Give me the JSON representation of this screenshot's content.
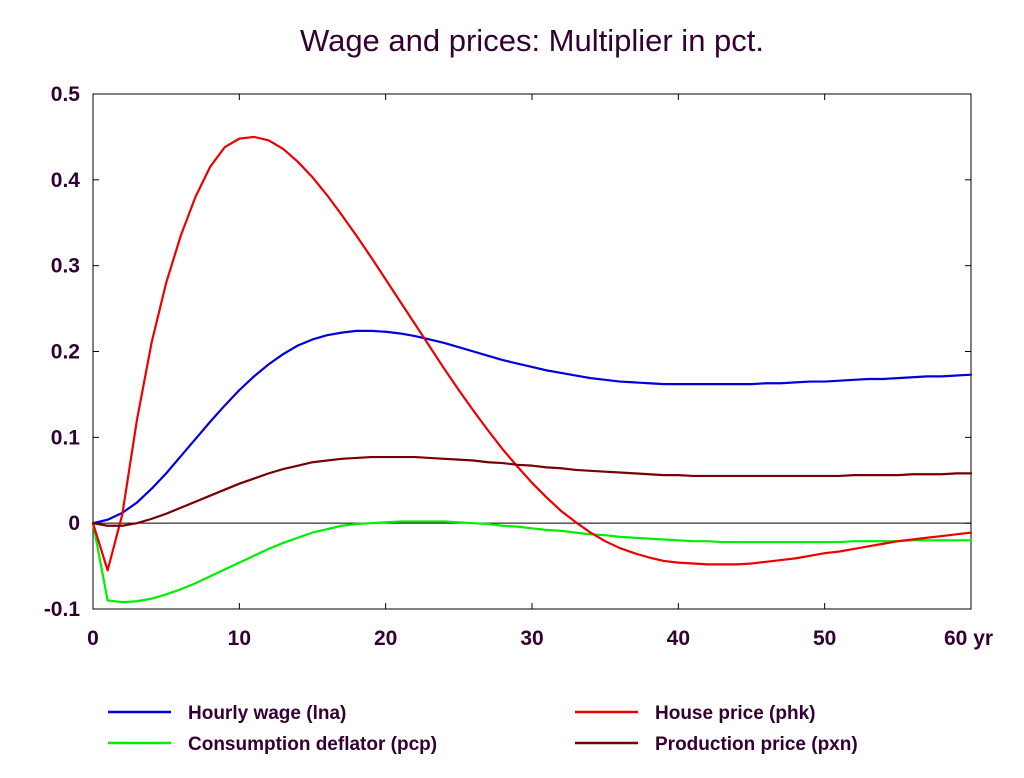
{
  "chart_data": {
    "type": "line",
    "title": "Wage and prices: Multiplier in pct.",
    "xlabel": "",
    "ylabel": "",
    "x_unit": "yr",
    "xlim": [
      0,
      60
    ],
    "ylim": [
      -0.1,
      0.5
    ],
    "xticks": [
      0,
      10,
      20,
      30,
      40,
      50,
      60
    ],
    "xtick_labels": [
      "0",
      "10",
      "20",
      "30",
      "40",
      "50",
      "60 yr"
    ],
    "yticks": [
      -0.1,
      0,
      0.1,
      0.2,
      0.3,
      0.4,
      0.5
    ],
    "ytick_labels": [
      "-0.1",
      "0",
      "0.1",
      "0.2",
      "0.3",
      "0.4",
      "0.5"
    ],
    "grid": false,
    "zero_line": true,
    "legend_position": "bottom",
    "x": [
      0,
      1,
      2,
      3,
      4,
      5,
      6,
      7,
      8,
      9,
      10,
      11,
      12,
      13,
      14,
      15,
      16,
      17,
      18,
      19,
      20,
      21,
      22,
      23,
      24,
      25,
      26,
      27,
      28,
      29,
      30,
      31,
      32,
      33,
      34,
      35,
      36,
      37,
      38,
      39,
      40,
      41,
      42,
      43,
      44,
      45,
      46,
      47,
      48,
      49,
      50,
      51,
      52,
      53,
      54,
      55,
      56,
      57,
      58,
      59,
      60
    ],
    "series": [
      {
        "name": "Hourly wage (lna)",
        "color": "#0000dd",
        "values": [
          0,
          0.004,
          0.012,
          0.024,
          0.04,
          0.058,
          0.078,
          0.098,
          0.118,
          0.137,
          0.155,
          0.171,
          0.185,
          0.197,
          0.207,
          0.214,
          0.219,
          0.222,
          0.224,
          0.224,
          0.223,
          0.221,
          0.218,
          0.214,
          0.21,
          0.205,
          0.2,
          0.195,
          0.19,
          0.186,
          0.182,
          0.178,
          0.175,
          0.172,
          0.169,
          0.167,
          0.165,
          0.164,
          0.163,
          0.162,
          0.162,
          0.162,
          0.162,
          0.162,
          0.162,
          0.162,
          0.163,
          0.163,
          0.164,
          0.165,
          0.165,
          0.166,
          0.167,
          0.168,
          0.168,
          0.169,
          0.17,
          0.171,
          0.171,
          0.172,
          0.173
        ]
      },
      {
        "name": "Consumption deflator (pcp)",
        "color": "#00ee00",
        "values": [
          0,
          -0.09,
          -0.092,
          -0.091,
          -0.088,
          -0.083,
          -0.077,
          -0.07,
          -0.062,
          -0.054,
          -0.046,
          -0.038,
          -0.03,
          -0.023,
          -0.017,
          -0.011,
          -0.007,
          -0.003,
          -0.001,
          0,
          0.001,
          0.002,
          0.002,
          0.002,
          0.002,
          0.001,
          0,
          -0.001,
          -0.003,
          -0.004,
          -0.006,
          -0.008,
          -0.009,
          -0.011,
          -0.013,
          -0.014,
          -0.016,
          -0.017,
          -0.018,
          -0.019,
          -0.02,
          -0.021,
          -0.021,
          -0.022,
          -0.022,
          -0.022,
          -0.022,
          -0.022,
          -0.022,
          -0.022,
          -0.022,
          -0.022,
          -0.021,
          -0.021,
          -0.021,
          -0.021,
          -0.02,
          -0.02,
          -0.02,
          -0.02,
          -0.02
        ]
      },
      {
        "name": "House price (phk)",
        "color": "#ee0000",
        "values": [
          0,
          -0.055,
          0.01,
          0.12,
          0.21,
          0.28,
          0.335,
          0.38,
          0.415,
          0.438,
          0.448,
          0.45,
          0.446,
          0.436,
          0.421,
          0.403,
          0.382,
          0.359,
          0.335,
          0.31,
          0.284,
          0.258,
          0.232,
          0.206,
          0.18,
          0.155,
          0.131,
          0.108,
          0.086,
          0.066,
          0.047,
          0.03,
          0.014,
          0.001,
          -0.011,
          -0.021,
          -0.029,
          -0.035,
          -0.04,
          -0.044,
          -0.046,
          -0.047,
          -0.048,
          -0.048,
          -0.048,
          -0.047,
          -0.045,
          -0.043,
          -0.041,
          -0.038,
          -0.035,
          -0.033,
          -0.03,
          -0.027,
          -0.024,
          -0.021,
          -0.019,
          -0.017,
          -0.015,
          -0.013,
          -0.011
        ]
      },
      {
        "name": "Production price (pxn)",
        "color": "#770000",
        "values": [
          0,
          -0.003,
          -0.003,
          0,
          0.005,
          0.011,
          0.018,
          0.025,
          0.032,
          0.039,
          0.046,
          0.052,
          0.058,
          0.063,
          0.067,
          0.071,
          0.073,
          0.075,
          0.076,
          0.077,
          0.077,
          0.077,
          0.077,
          0.076,
          0.075,
          0.074,
          0.073,
          0.071,
          0.07,
          0.068,
          0.067,
          0.065,
          0.064,
          0.062,
          0.061,
          0.06,
          0.059,
          0.058,
          0.057,
          0.056,
          0.056,
          0.055,
          0.055,
          0.055,
          0.055,
          0.055,
          0.055,
          0.055,
          0.055,
          0.055,
          0.055,
          0.055,
          0.056,
          0.056,
          0.056,
          0.056,
          0.057,
          0.057,
          0.057,
          0.058,
          0.058
        ]
      }
    ]
  }
}
